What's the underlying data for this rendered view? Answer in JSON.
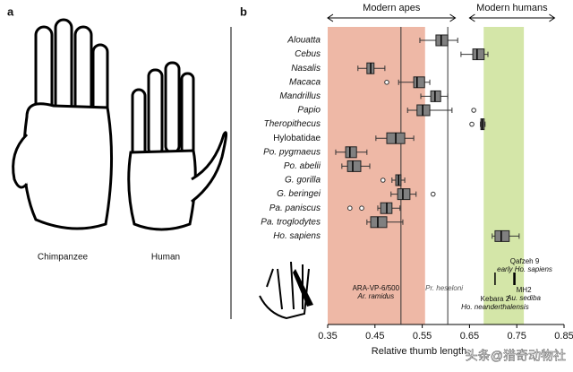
{
  "panel_a": {
    "label": "a",
    "hands": [
      "Chimpanzee",
      "Human"
    ]
  },
  "chart_data": {
    "type": "box",
    "panel_label": "b",
    "x_label": "Relative thumb length",
    "xlim": [
      0.35,
      0.85
    ],
    "xticks": [
      0.35,
      0.45,
      0.55,
      0.65,
      0.75,
      0.85
    ],
    "categories": [
      "Alouatta",
      "Cebus",
      "Nasalis",
      "Macaca",
      "Mandrillus",
      "Papio",
      "Theropithecus",
      "Hylobatidae",
      "Po. pygmaeus",
      "Po. abelii",
      "G. gorilla",
      "G. beringei",
      "Pa. paniscus",
      "Pa. troglodytes",
      "Ho. sapiens"
    ],
    "italic": [
      true,
      true,
      true,
      true,
      true,
      true,
      true,
      false,
      true,
      true,
      true,
      true,
      true,
      true,
      true
    ],
    "low": [
      0.545,
      0.632,
      0.414,
      0.5,
      0.547,
      0.519,
      0.673,
      0.452,
      0.367,
      0.38,
      0.486,
      0.484,
      0.456,
      0.433,
      0.698
    ],
    "q1": [
      0.579,
      0.657,
      0.433,
      0.532,
      0.568,
      0.539,
      0.674,
      0.475,
      0.388,
      0.392,
      0.494,
      0.498,
      0.462,
      0.441,
      0.704
    ],
    "median": [
      0.59,
      0.666,
      0.441,
      0.539,
      0.577,
      0.551,
      0.677,
      0.494,
      0.397,
      0.403,
      0.5,
      0.509,
      0.475,
      0.456,
      0.717
    ],
    "q3": [
      0.604,
      0.681,
      0.448,
      0.555,
      0.589,
      0.566,
      0.681,
      0.513,
      0.411,
      0.42,
      0.505,
      0.524,
      0.486,
      0.475,
      0.734
    ],
    "high": [
      0.625,
      0.689,
      0.471,
      0.566,
      0.604,
      0.613,
      0.683,
      0.532,
      0.433,
      0.439,
      0.513,
      0.537,
      0.503,
      0.509,
      0.755
    ],
    "outliers": [
      [],
      [],
      [],
      [
        0.475
      ],
      [],
      [
        0.659
      ],
      [
        0.655
      ],
      [],
      [],
      [],
      [
        0.467
      ],
      [
        0.573
      ],
      [
        0.397,
        0.422
      ],
      [],
      []
    ],
    "box_color": "#808080",
    "regions": [
      {
        "name": "Modern apes",
        "range": [
          0.35,
          0.556
        ],
        "color": "#eeb8a6"
      },
      {
        "name": "Modern humans",
        "range": [
          0.68,
          0.765
        ],
        "color": "#d4e6a8"
      }
    ],
    "fossils": [
      {
        "name": "ARA-VP-6/500",
        "taxon": "Ar. ramidus",
        "value": 0.505
      },
      {
        "name": "Pr. heseloni",
        "value": 0.604
      },
      {
        "name": "Kebara 2",
        "taxon": "Ho. neanderthalensis",
        "value": 0.704
      },
      {
        "name": "Qafzeh 9",
        "taxon": "early Ho. sapiens",
        "value": 0.744
      },
      {
        "name": "MH2",
        "taxon": "Au. sediba",
        "value": 0.746
      }
    ],
    "watermark": "头条@猎奇动物社"
  }
}
